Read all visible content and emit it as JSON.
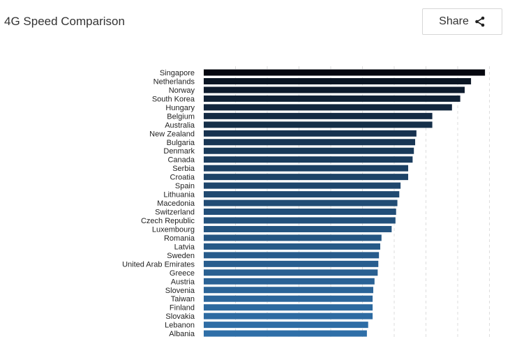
{
  "header": {
    "title": "4G Speed Comparison",
    "share_label": "Share",
    "share_icon": "share-icon"
  },
  "chart_data": {
    "type": "bar",
    "orientation": "horizontal",
    "title": "4G Speed Comparison",
    "xlabel": "",
    "ylabel": "",
    "xlim": [
      0,
      45
    ],
    "grid": true,
    "gridline_step": 5,
    "categories": [
      "Singapore",
      "Netherlands",
      "Norway",
      "South Korea",
      "Hungary",
      "Belgium",
      "Australia",
      "New Zealand",
      "Bulgaria",
      "Denmark",
      "Canada",
      "Serbia",
      "Croatia",
      "Spain",
      "Lithuania",
      "Macedonia",
      "Switzerland",
      "Czech Republic",
      "Luxembourg",
      "Romania",
      "Latvia",
      "Sweden",
      "United Arab Emirates",
      "Greece",
      "Austria",
      "Slovenia",
      "Taiwan",
      "Finland",
      "Slovakia",
      "Lebanon",
      "Albania"
    ],
    "values": [
      44.3,
      42.1,
      41.1,
      40.4,
      39.1,
      36.0,
      36.0,
      33.5,
      33.3,
      33.1,
      32.9,
      32.2,
      32.2,
      31.0,
      30.8,
      30.5,
      30.3,
      30.2,
      29.6,
      28.0,
      27.8,
      27.6,
      27.5,
      27.4,
      26.9,
      26.7,
      26.6,
      26.6,
      26.6,
      25.9,
      25.7
    ],
    "color_start": "#05070f",
    "color_end": "#2f6fa8"
  }
}
